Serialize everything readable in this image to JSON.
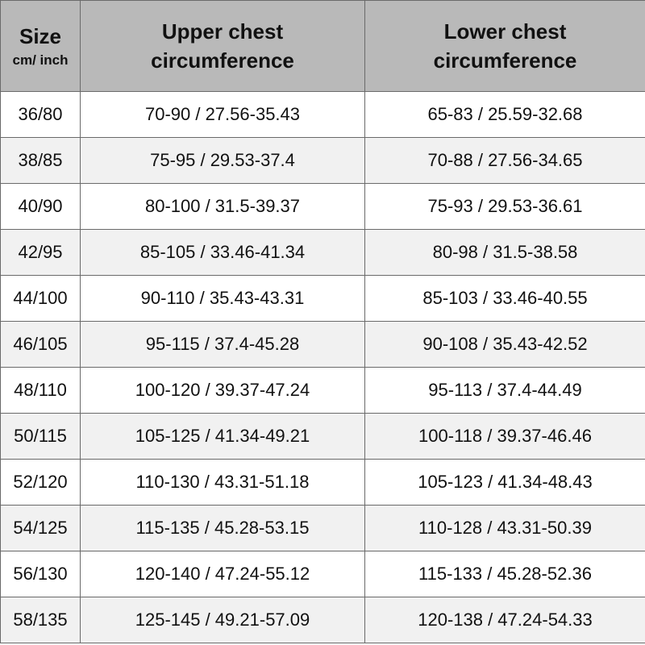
{
  "table": {
    "header": {
      "size": [
        "Size",
        "cm/ inch"
      ],
      "upper": [
        "Upper chest",
        "circumference"
      ],
      "lower": [
        "Lower chest",
        "circumference"
      ]
    },
    "rows": [
      [
        "36/80",
        "70-90 / 27.56-35.43",
        "65-83 / 25.59-32.68"
      ],
      [
        "38/85",
        "75-95 / 29.53-37.4",
        "70-88 / 27.56-34.65"
      ],
      [
        "40/90",
        "80-100 / 31.5-39.37",
        "75-93 / 29.53-36.61"
      ],
      [
        "42/95",
        "85-105 / 33.46-41.34",
        "80-98 / 31.5-38.58"
      ],
      [
        "44/100",
        "90-110 / 35.43-43.31",
        "85-103 / 33.46-40.55"
      ],
      [
        "46/105",
        "95-115 / 37.4-45.28",
        "90-108 / 35.43-42.52"
      ],
      [
        "48/110",
        "100-120 / 39.37-47.24",
        "95-113 / 37.4-44.49"
      ],
      [
        "50/115",
        "105-125 / 41.34-49.21",
        "100-118 / 39.37-46.46"
      ],
      [
        "52/120",
        "110-130 / 43.31-51.18",
        "105-123 / 41.34-48.43"
      ],
      [
        "54/125",
        "115-135 / 45.28-53.15",
        "110-128 / 43.31-50.39"
      ],
      [
        "56/130",
        "120-140 / 47.24-55.12",
        "115-133 / 45.28-52.36"
      ],
      [
        "58/135",
        "125-145 / 49.21-57.09",
        "120-138 / 47.24-54.33"
      ]
    ]
  }
}
